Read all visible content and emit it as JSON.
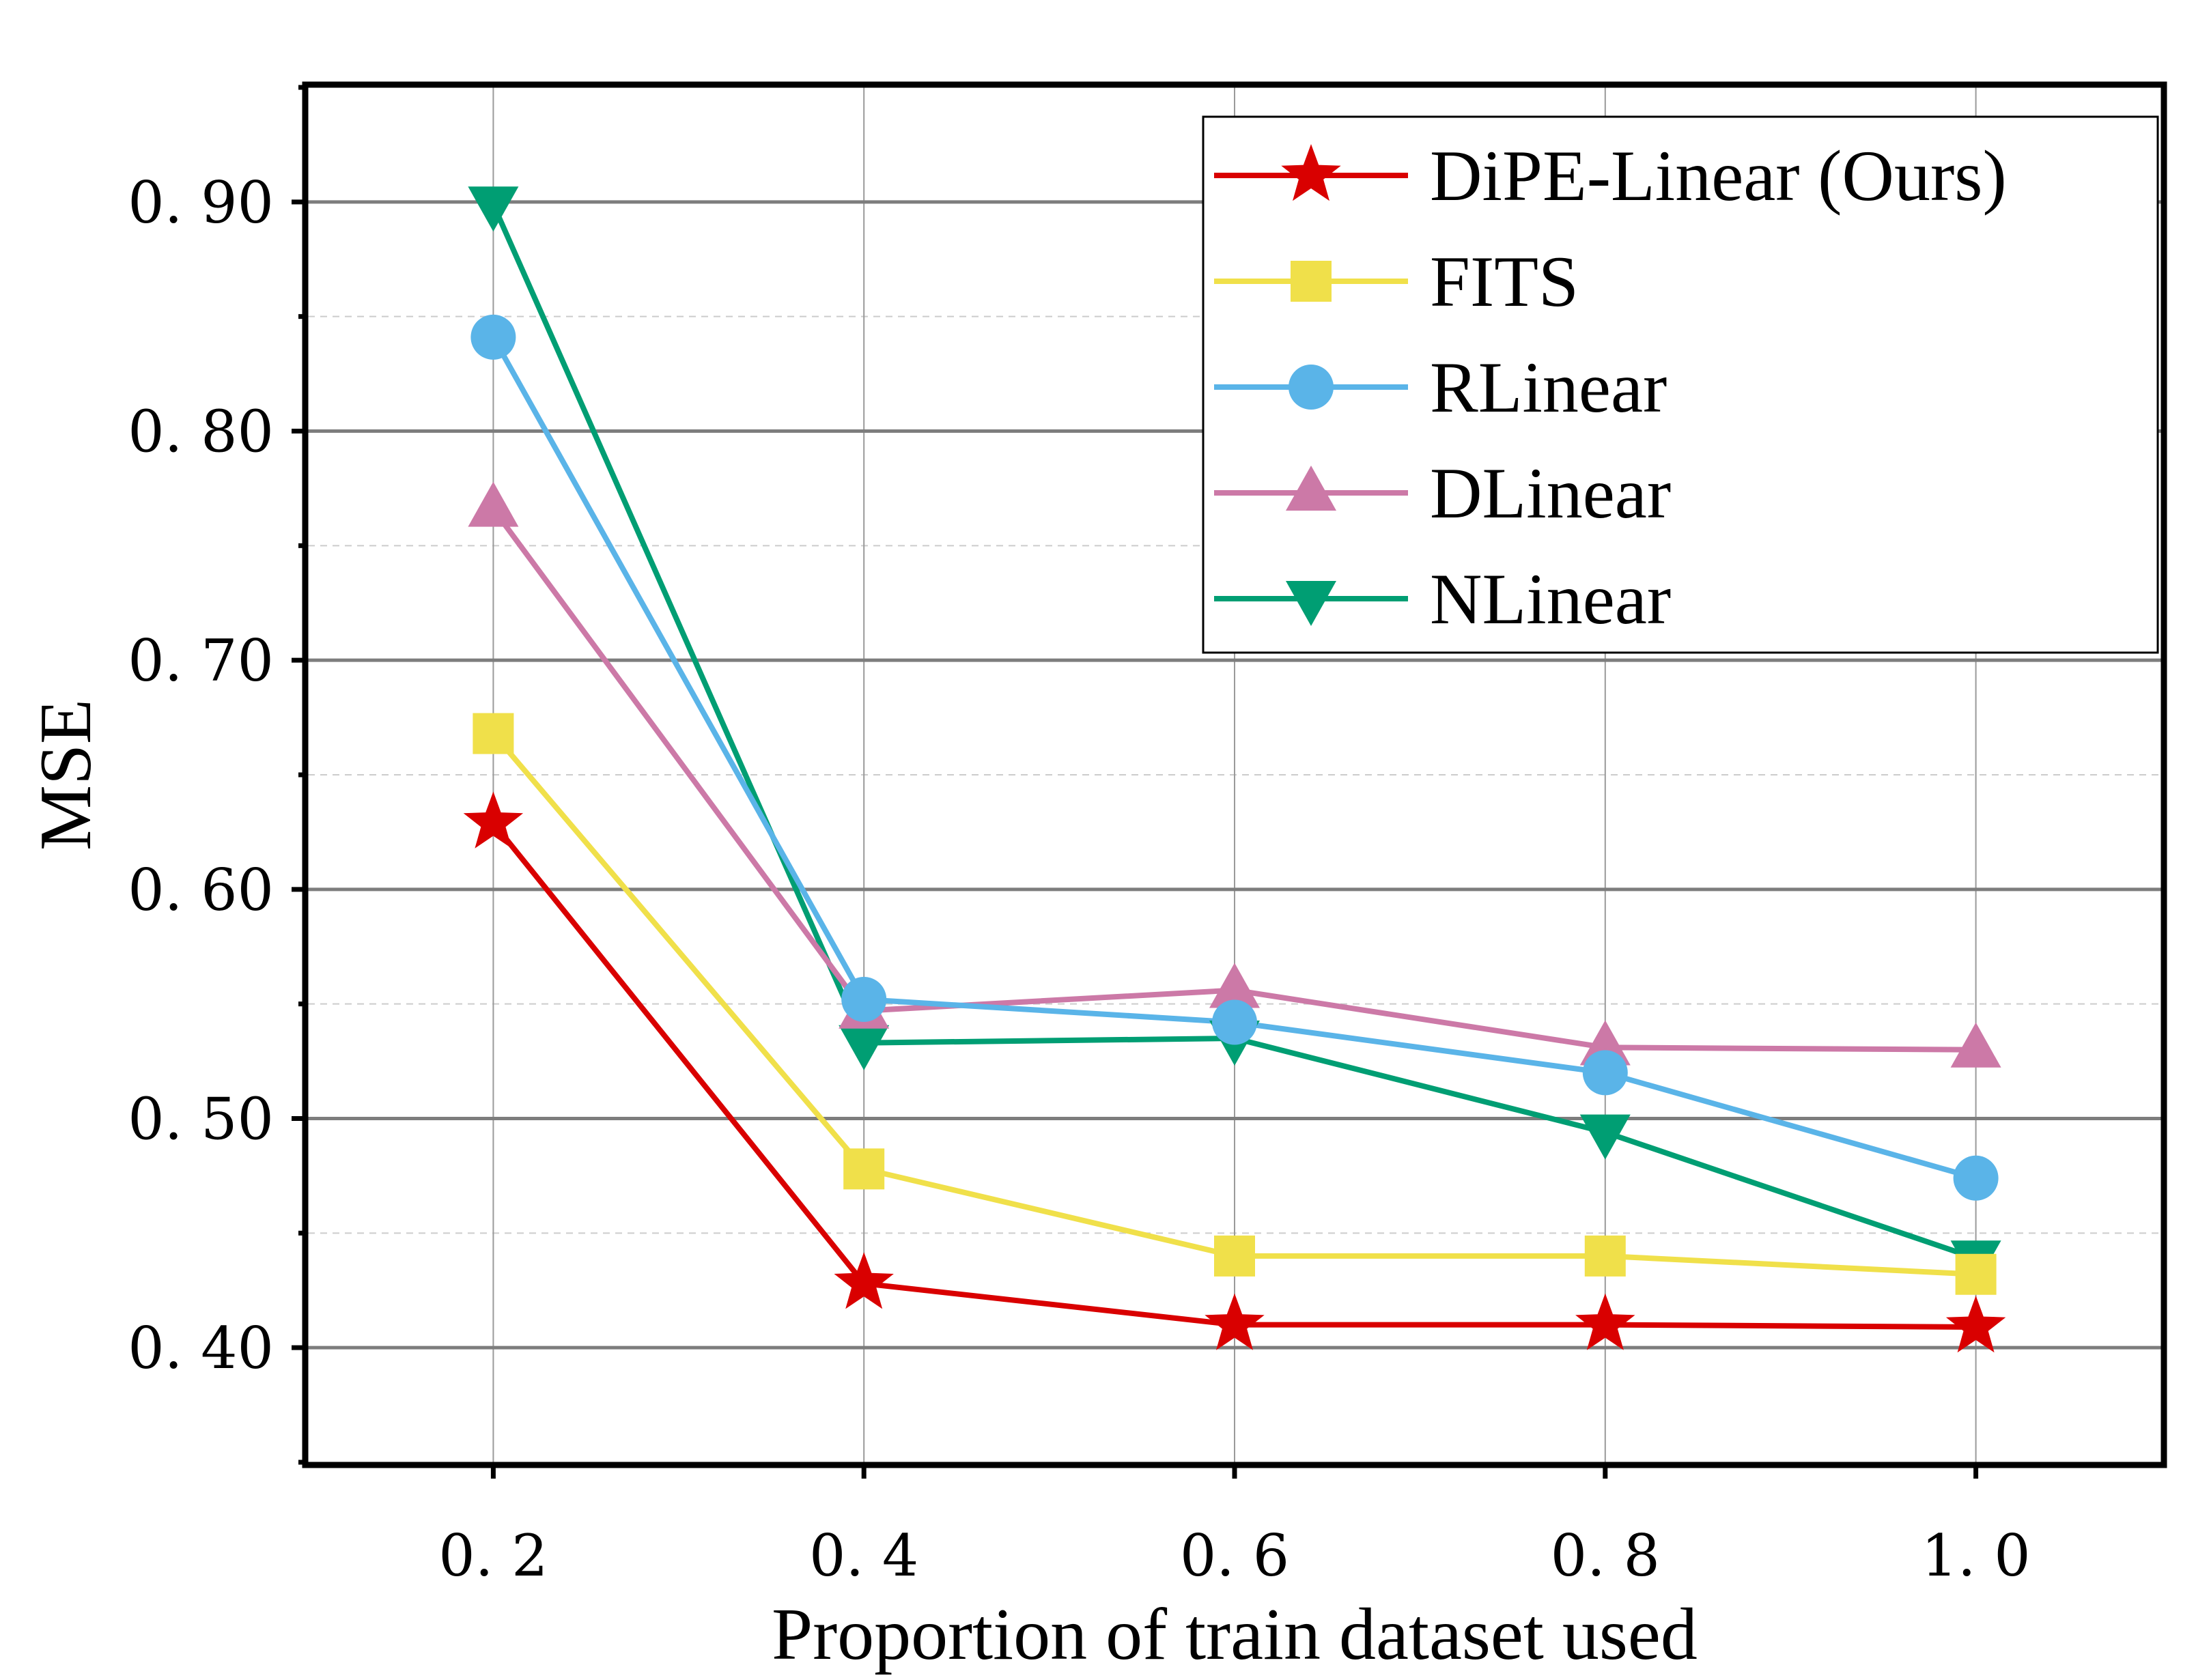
{
  "chart_data": {
    "type": "line",
    "title": "",
    "xlabel": "Proportion of train dataset used",
    "ylabel": "MSE",
    "xlim": [
      0.1,
      1.1
    ],
    "ylim": [
      0.35,
      0.95
    ],
    "x": [
      0.2,
      0.4,
      0.6,
      0.8,
      1.0
    ],
    "x_tick_labels": [
      "0. 2",
      "0. 4",
      "0. 6",
      "0. 8",
      "1. 0"
    ],
    "y_ticks": [
      0.4,
      0.5,
      0.6,
      0.7,
      0.8,
      0.9
    ],
    "y_tick_labels": [
      "0. 40",
      "0. 50",
      "0. 60",
      "0. 70",
      "0. 80",
      "0. 90"
    ],
    "y_minor_ticks": [
      0.45,
      0.55,
      0.65,
      0.75,
      0.85
    ],
    "grid": true,
    "legend_position": "top-right",
    "series": [
      {
        "name": "DiPE-Linear (Ours)",
        "color": "#d90000",
        "marker": "star",
        "values": [
          0.629,
          0.428,
          0.41,
          0.41,
          0.409
        ]
      },
      {
        "name": "FITS",
        "color": "#f0e04a",
        "marker": "square",
        "values": [
          0.668,
          0.478,
          0.44,
          0.44,
          0.432
        ]
      },
      {
        "name": "RLinear",
        "color": "#5ab4e8",
        "marker": "circle",
        "values": [
          0.841,
          0.552,
          0.542,
          0.52,
          0.474
        ]
      },
      {
        "name": "DLinear",
        "color": "#cc79a7",
        "marker": "triangle-up",
        "values": [
          0.766,
          0.547,
          0.556,
          0.531,
          0.53
        ]
      },
      {
        "name": "NLinear",
        "color": "#009e73",
        "marker": "triangle-down",
        "values": [
          0.899,
          0.533,
          0.535,
          0.494,
          0.439
        ]
      }
    ]
  }
}
